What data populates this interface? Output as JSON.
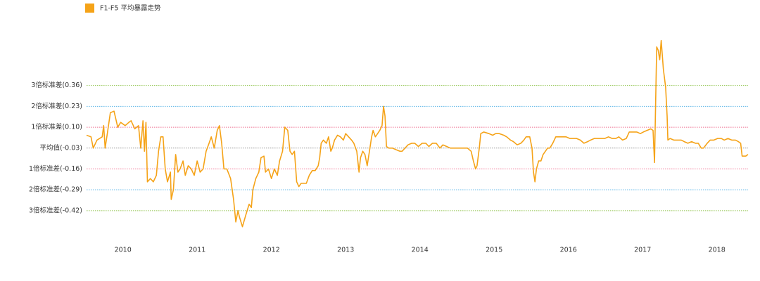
{
  "chart_data": {
    "type": "line",
    "series": [
      {
        "name": "F1-F5 平均暴露走势",
        "color": "#f5a318",
        "x": [
          2009.51,
          2009.57,
          2009.6,
          2009.65,
          2009.72,
          2009.74,
          2009.76,
          2009.79,
          2009.83,
          2009.88,
          2009.91,
          2009.93,
          2009.97,
          2010.03,
          2010.08,
          2010.11,
          2010.16,
          2010.21,
          2010.24,
          2010.27,
          2010.29,
          2010.31,
          2010.33,
          2010.37,
          2010.41,
          2010.45,
          2010.48,
          2010.51,
          2010.54,
          2010.57,
          2010.6,
          2010.64,
          2010.65,
          2010.68,
          2010.71,
          2010.74,
          2010.77,
          2010.81,
          2010.84,
          2010.88,
          2010.92,
          2010.96,
          2011.0,
          2011.04,
          2011.08,
          2011.12,
          2011.16,
          2011.19,
          2011.23,
          2011.27,
          2011.3,
          2011.33,
          2011.36,
          2011.4,
          2011.45,
          2011.49,
          2011.52,
          2011.55,
          2011.57,
          2011.61,
          2011.66,
          2011.7,
          2011.73,
          2011.75,
          2011.79,
          2011.83,
          2011.86,
          2011.9,
          2011.92,
          2011.96,
          2012.0,
          2012.04,
          2012.08,
          2012.11,
          2012.15,
          2012.18,
          2012.22,
          2012.25,
          2012.28,
          2012.31,
          2012.34,
          2012.37,
          2012.4,
          2012.44,
          2012.47,
          2012.51,
          2012.55,
          2012.59,
          2012.63,
          2012.65,
          2012.67,
          2012.7,
          2012.74,
          2012.77,
          2012.8,
          2012.82,
          2012.85,
          2012.89,
          2012.93,
          2012.97,
          2013.0,
          2013.04,
          2013.08,
          2013.11,
          2013.15,
          2013.18,
          2013.2,
          2013.23,
          2013.26,
          2013.29,
          2013.32,
          2013.35,
          2013.37,
          2013.4,
          2013.43,
          2013.46,
          2013.49,
          2013.51,
          2013.53,
          2013.55,
          2013.58,
          2013.63,
          2013.68,
          2013.73,
          2013.76,
          2013.8,
          2013.84,
          2013.89,
          2013.93,
          2013.98,
          2014.03,
          2014.08,
          2014.12,
          2014.17,
          2014.22,
          2014.27,
          2014.31,
          2014.36,
          2014.41,
          2014.45,
          2014.5,
          2014.55,
          2014.6,
          2014.64,
          2014.69,
          2014.72,
          2014.75,
          2014.77,
          2014.8,
          2014.82,
          2014.86,
          2014.93,
          2014.98,
          2015.02,
          2015.07,
          2015.13,
          2015.17,
          2015.22,
          2015.26,
          2015.31,
          2015.36,
          2015.4,
          2015.43,
          2015.48,
          2015.51,
          2015.53,
          2015.55,
          2015.57,
          2015.6,
          2015.63,
          2015.66,
          2015.69,
          2015.72,
          2015.75,
          2015.79,
          2015.83,
          2015.88,
          2015.92,
          2015.97,
          2016.02,
          2016.07,
          2016.11,
          2016.16,
          2016.21,
          2016.26,
          2016.3,
          2016.35,
          2016.4,
          2016.45,
          2016.49,
          2016.54,
          2016.59,
          2016.64,
          2016.68,
          2016.73,
          2016.78,
          2016.82,
          2016.87,
          2016.92,
          2016.97,
          2017.01,
          2017.06,
          2017.11,
          2017.14,
          2017.16,
          2017.18,
          2017.19,
          2017.21,
          2017.23,
          2017.25,
          2017.28,
          2017.31,
          2017.33,
          2017.34,
          2017.37,
          2017.42,
          2017.47,
          2017.52,
          2017.56,
          2017.61,
          2017.66,
          2017.71,
          2017.75,
          2017.79,
          2017.82,
          2017.87,
          2017.91,
          2017.96,
          2018.01,
          2018.06,
          2018.1,
          2018.15,
          2018.2,
          2018.25,
          2018.29,
          2018.32,
          2018.34,
          2018.39,
          2018.42
        ],
        "values": [
          0.05,
          0.04,
          -0.03,
          0.02,
          0.04,
          0.11,
          -0.03,
          0.06,
          0.19,
          0.2,
          0.14,
          0.1,
          0.13,
          0.11,
          0.13,
          0.14,
          0.09,
          0.11,
          -0.03,
          0.14,
          -0.05,
          0.13,
          -0.24,
          -0.22,
          -0.24,
          -0.2,
          -0.05,
          0.04,
          0.04,
          -0.16,
          -0.24,
          -0.18,
          -0.35,
          -0.29,
          -0.07,
          -0.18,
          -0.16,
          -0.11,
          -0.2,
          -0.14,
          -0.16,
          -0.2,
          -0.11,
          -0.18,
          -0.16,
          -0.05,
          0.0,
          0.04,
          -0.03,
          0.08,
          0.11,
          0.0,
          -0.16,
          -0.16,
          -0.22,
          -0.35,
          -0.49,
          -0.42,
          -0.46,
          -0.52,
          -0.44,
          -0.38,
          -0.4,
          -0.29,
          -0.22,
          -0.18,
          -0.09,
          -0.08,
          -0.18,
          -0.16,
          -0.22,
          -0.16,
          -0.2,
          -0.11,
          -0.05,
          0.1,
          0.08,
          -0.05,
          -0.07,
          -0.05,
          -0.24,
          -0.27,
          -0.25,
          -0.25,
          -0.25,
          -0.2,
          -0.17,
          -0.17,
          -0.14,
          -0.09,
          0.0,
          0.02,
          0.0,
          0.04,
          -0.05,
          -0.03,
          0.02,
          0.05,
          0.04,
          0.02,
          0.06,
          0.04,
          0.02,
          0.0,
          -0.05,
          -0.18,
          -0.09,
          -0.05,
          -0.07,
          -0.14,
          -0.05,
          0.04,
          0.08,
          0.04,
          0.06,
          0.08,
          0.11,
          0.23,
          0.17,
          -0.02,
          -0.03,
          -0.03,
          -0.04,
          -0.05,
          -0.05,
          -0.03,
          -0.01,
          0.0,
          0.0,
          -0.02,
          0.0,
          0.0,
          -0.02,
          0.0,
          0.0,
          -0.03,
          -0.01,
          -0.02,
          -0.03,
          -0.03,
          -0.03,
          -0.03,
          -0.03,
          -0.03,
          -0.05,
          -0.11,
          -0.16,
          -0.14,
          -0.03,
          0.06,
          0.07,
          0.06,
          0.05,
          0.06,
          0.06,
          0.05,
          0.04,
          0.02,
          0.01,
          -0.01,
          0.0,
          0.02,
          0.04,
          0.04,
          -0.03,
          -0.18,
          -0.24,
          -0.16,
          -0.11,
          -0.11,
          -0.07,
          -0.05,
          -0.03,
          -0.03,
          0.0,
          0.04,
          0.04,
          0.04,
          0.04,
          0.03,
          0.03,
          0.03,
          0.02,
          0.0,
          0.01,
          0.02,
          0.03,
          0.03,
          0.03,
          0.03,
          0.04,
          0.03,
          0.03,
          0.04,
          0.02,
          0.03,
          0.07,
          0.07,
          0.07,
          0.06,
          0.07,
          0.08,
          0.09,
          0.08,
          -0.12,
          0.37,
          0.6,
          0.58,
          0.52,
          0.64,
          0.46,
          0.35,
          0.17,
          0.02,
          0.03,
          0.02,
          0.02,
          0.02,
          0.01,
          0.0,
          0.01,
          0.0,
          0.0,
          -0.03,
          -0.03,
          0.0,
          0.02,
          0.02,
          0.03,
          0.03,
          0.02,
          0.03,
          0.02,
          0.02,
          0.01,
          0.0,
          -0.08,
          -0.08,
          -0.07
        ]
      }
    ],
    "xlim": [
      2009.51,
      2018.42
    ],
    "xticks": [
      2010,
      2011,
      2012,
      2013,
      2014,
      2015,
      2016,
      2017,
      2018
    ],
    "ylim": [
      -0.6,
      0.7
    ],
    "yticks": [
      {
        "value": 0.36,
        "label": "3倍标准差(0.36)"
      },
      {
        "value": 0.23,
        "label": "2倍标准差(0.23)"
      },
      {
        "value": 0.1,
        "label": "1倍标准差(0.10)"
      },
      {
        "value": -0.03,
        "label": "平均值(-0.03)"
      },
      {
        "value": -0.16,
        "label": "1倍标准差(-0.16)"
      },
      {
        "value": -0.29,
        "label": "2倍标准差(-0.29)"
      },
      {
        "value": -0.42,
        "label": "3倍标准差(-0.42)"
      }
    ],
    "grid": true,
    "grid_colors": [
      "#8fc24a",
      "#5ab4e6",
      "#ee6d8e",
      "#999999",
      "#ee6d8e",
      "#5ab4e6",
      "#8fc24a"
    ],
    "legend": "top-left"
  }
}
